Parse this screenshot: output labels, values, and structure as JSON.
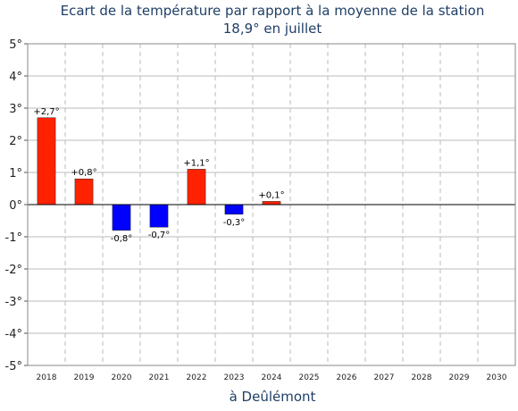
{
  "chart_data": {
    "type": "bar",
    "title": "Ecart de la température par rapport à la moyenne de la station",
    "subtitle": "18,9° en juillet",
    "xlabel": "à Deûlémont",
    "ylabel": "",
    "ylim": [
      -5,
      5
    ],
    "yticks": [
      {
        "value": 5,
        "label": "5°"
      },
      {
        "value": 4,
        "label": "4°"
      },
      {
        "value": 3,
        "label": "3°"
      },
      {
        "value": 2,
        "label": "2°"
      },
      {
        "value": 1,
        "label": "1°"
      },
      {
        "value": 0,
        "label": "0°"
      },
      {
        "value": -1,
        "label": "-1°"
      },
      {
        "value": -2,
        "label": "-2°"
      },
      {
        "value": -3,
        "label": "-3°"
      },
      {
        "value": -4,
        "label": "-4°"
      },
      {
        "value": -5,
        "label": "-5°"
      }
    ],
    "categories": [
      "2018",
      "2019",
      "2020",
      "2021",
      "2022",
      "2023",
      "2024",
      "2025",
      "2026",
      "2027",
      "2028",
      "2029",
      "2030"
    ],
    "values": [
      2.7,
      0.8,
      -0.8,
      -0.7,
      1.1,
      -0.3,
      0.1,
      null,
      null,
      null,
      null,
      null,
      null
    ],
    "value_labels": [
      "+2,7°",
      "+0,8°",
      "-0,8°",
      "-0,7°",
      "+1,1°",
      "-0,3°",
      "+0,1°",
      "",
      "",
      "",
      "",
      "",
      ""
    ],
    "grid": true,
    "colors": {
      "positive": "#ff2200",
      "negative": "#0000ff",
      "title": "#1f3f66",
      "grid": "#bbbbbb"
    }
  }
}
